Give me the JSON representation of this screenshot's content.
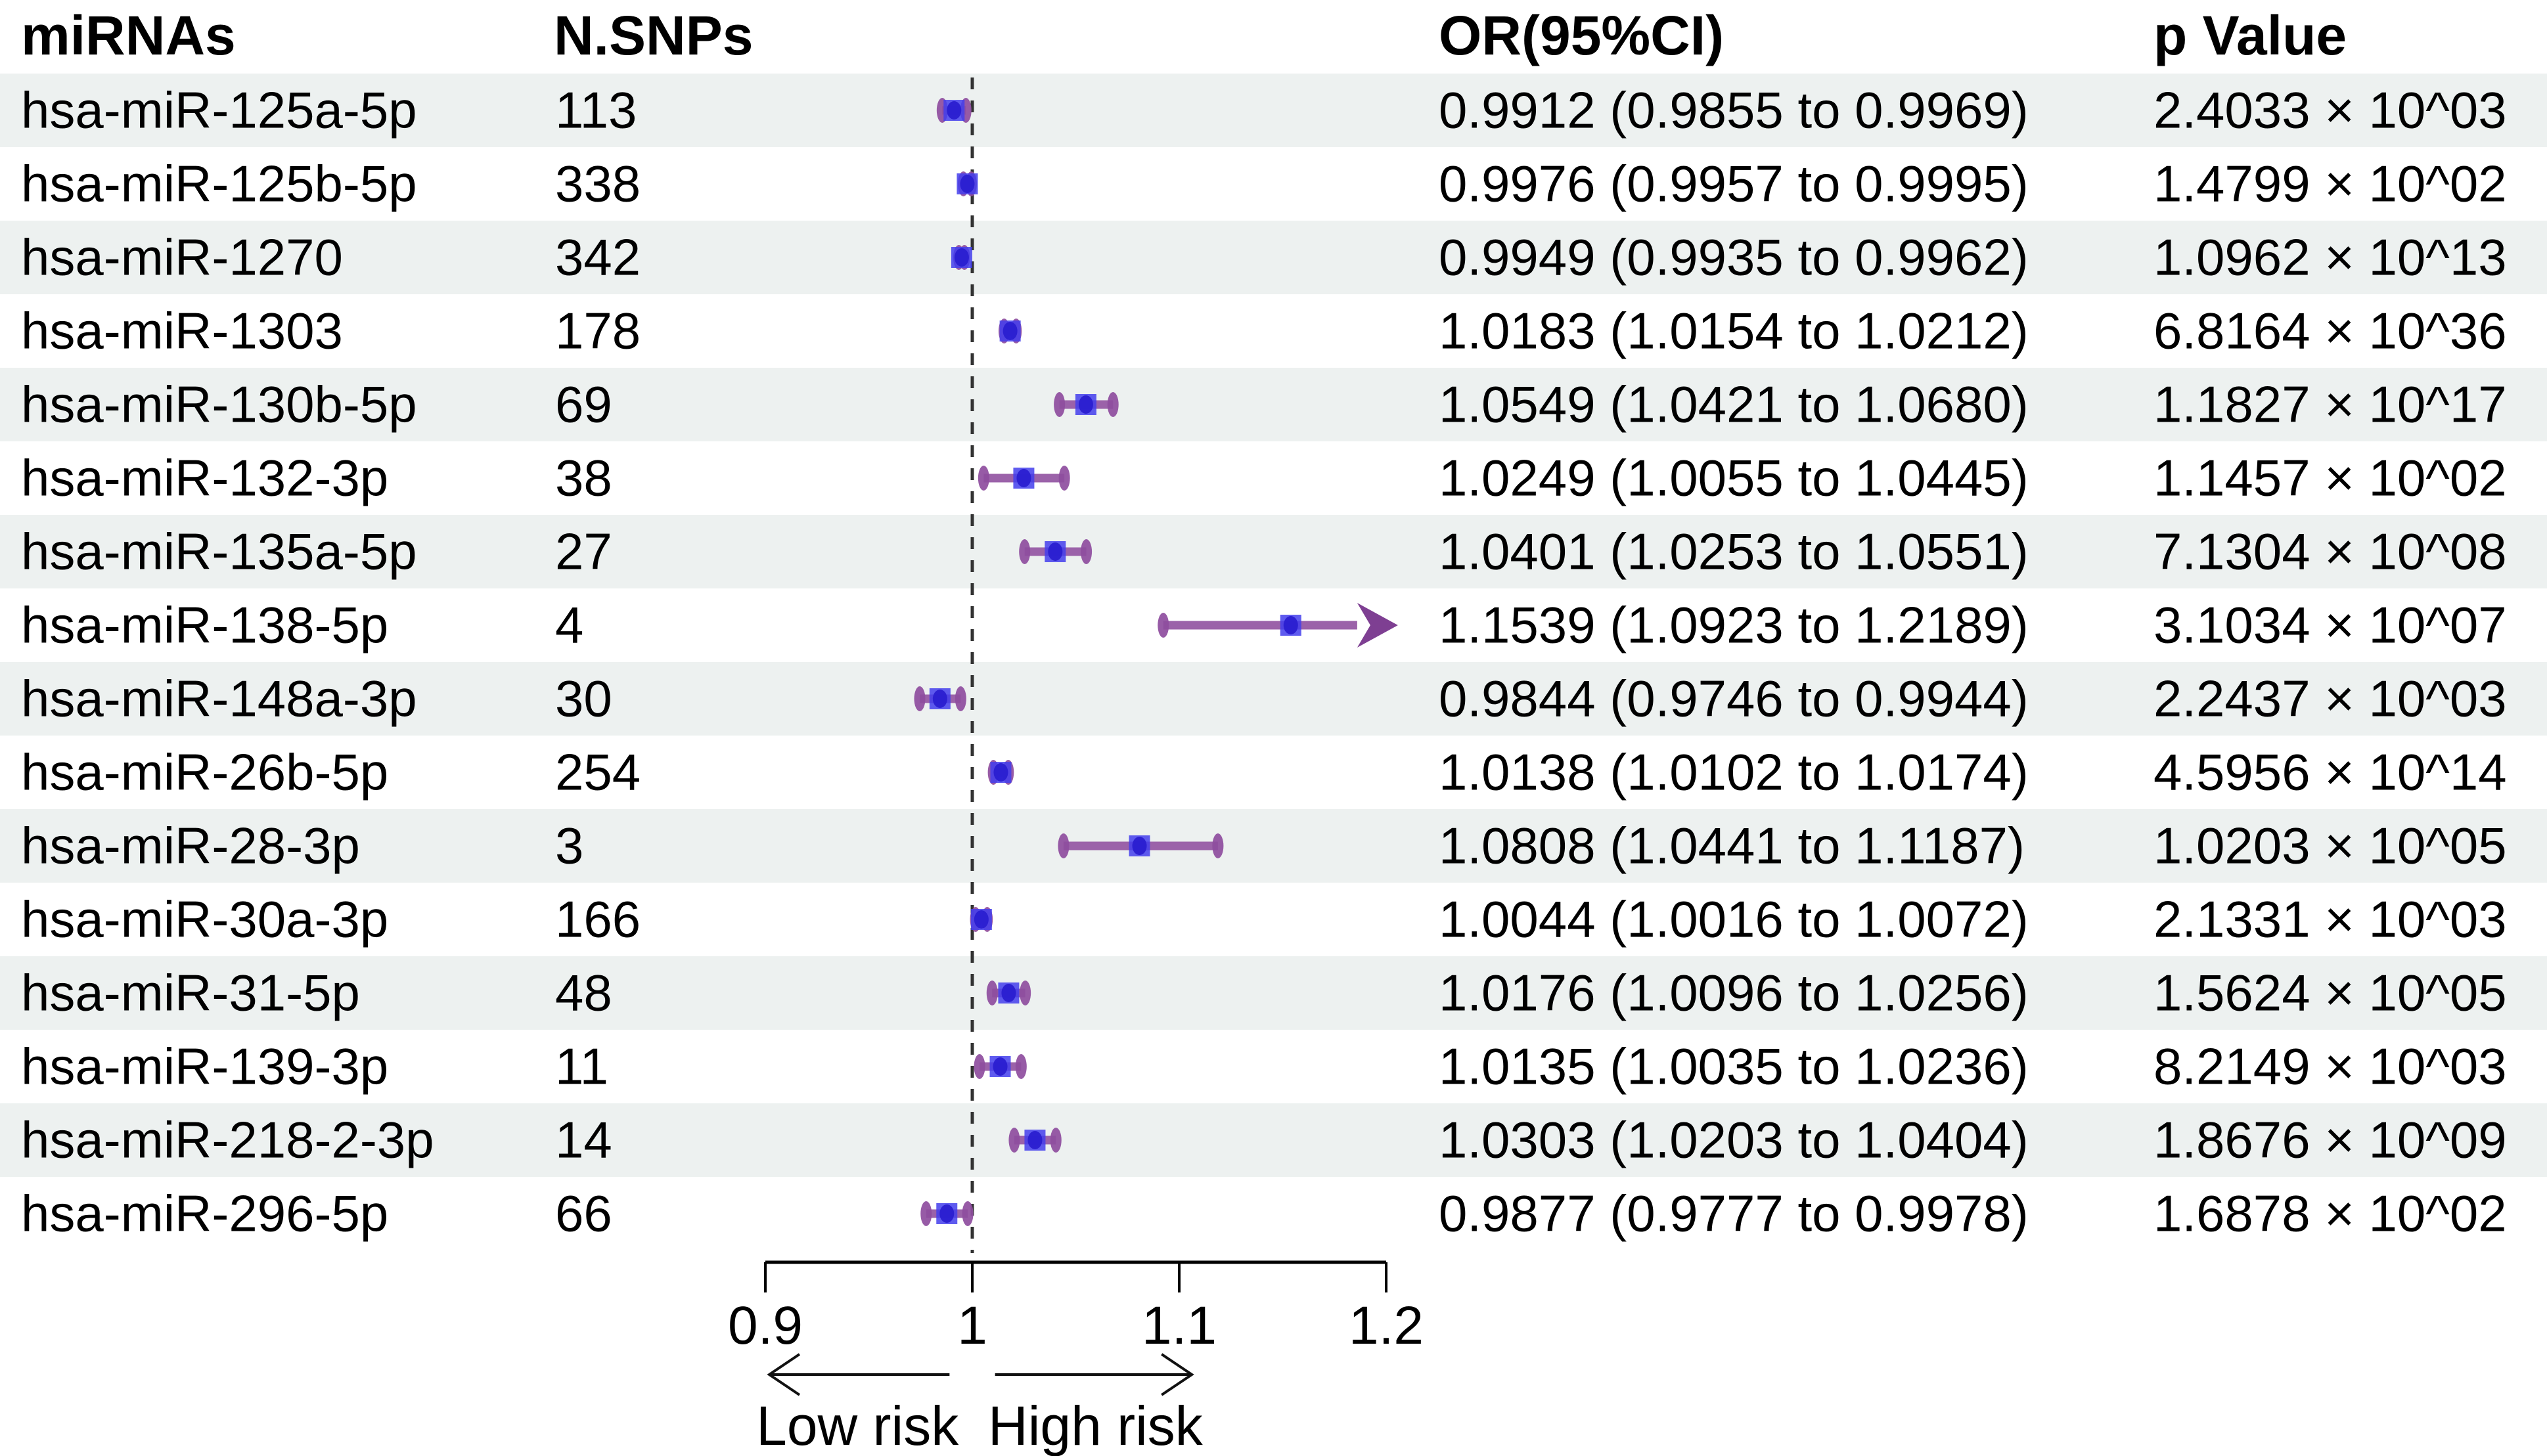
{
  "figure": {
    "columns": {
      "mirnas": "miRNAs",
      "nsnps": "N.SNPs",
      "or": "OR(95%CI)",
      "p": "p Value"
    }
  },
  "chart_data": {
    "type": "forest",
    "title": "",
    "xlabel": "",
    "xlim": [
      0.9,
      1.2
    ],
    "x_ticks": [
      0.9,
      1.0,
      1.1,
      1.2
    ],
    "x_tick_labels": [
      "0.9",
      "1",
      "1.1",
      "1.2"
    ],
    "reference_line": 1.0,
    "grid": "off",
    "legend": "none",
    "low_risk_label": "Low risk",
    "high_risk_label": "High risk",
    "rows": [
      {
        "name": "hsa-miR-125a-5p",
        "snps": "113",
        "or": 0.9912,
        "low": 0.9855,
        "high": 0.9969,
        "or_text": "0.9912 (0.9855 to 0.9969)",
        "p_text": "2.4033 × 10^03"
      },
      {
        "name": "hsa-miR-125b-5p",
        "snps": "338",
        "or": 0.9976,
        "low": 0.9957,
        "high": 0.9995,
        "or_text": "0.9976 (0.9957 to 0.9995)",
        "p_text": "1.4799 × 10^02"
      },
      {
        "name": "hsa-miR-1270",
        "snps": "342",
        "or": 0.9949,
        "low": 0.9935,
        "high": 0.9962,
        "or_text": "0.9949 (0.9935 to 0.9962)",
        "p_text": "1.0962 × 10^13"
      },
      {
        "name": "hsa-miR-1303",
        "snps": "178",
        "or": 1.0183,
        "low": 1.0154,
        "high": 1.0212,
        "or_text": "1.0183 (1.0154 to 1.0212)",
        "p_text": "6.8164 × 10^36"
      },
      {
        "name": "hsa-miR-130b-5p",
        "snps": "69",
        "or": 1.0549,
        "low": 1.0421,
        "high": 1.068,
        "or_text": "1.0549 (1.0421 to 1.0680)",
        "p_text": "1.1827 × 10^17"
      },
      {
        "name": "hsa-miR-132-3p",
        "snps": "38",
        "or": 1.0249,
        "low": 1.0055,
        "high": 1.0445,
        "or_text": "1.0249 (1.0055 to 1.0445)",
        "p_text": "1.1457 × 10^02"
      },
      {
        "name": "hsa-miR-135a-5p",
        "snps": "27",
        "or": 1.0401,
        "low": 1.0253,
        "high": 1.0551,
        "or_text": "1.0401 (1.0253 to 1.0551)",
        "p_text": "7.1304 × 10^08"
      },
      {
        "name": "hsa-miR-138-5p",
        "snps": "4",
        "or": 1.1539,
        "low": 1.0923,
        "high": 1.2189,
        "or_text": "1.1539 (1.0923 to 1.2189)",
        "p_text": "3.1034 × 10^07"
      },
      {
        "name": "hsa-miR-148a-3p",
        "snps": "30",
        "or": 0.9844,
        "low": 0.9746,
        "high": 0.9944,
        "or_text": "0.9844 (0.9746 to 0.9944)",
        "p_text": "2.2437 × 10^03"
      },
      {
        "name": "hsa-miR-26b-5p",
        "snps": "254",
        "or": 1.0138,
        "low": 1.0102,
        "high": 1.0174,
        "or_text": "1.0138 (1.0102 to 1.0174)",
        "p_text": "4.5956 × 10^14"
      },
      {
        "name": "hsa-miR-28-3p",
        "snps": "3",
        "or": 1.0808,
        "low": 1.0441,
        "high": 1.1187,
        "or_text": "1.0808 (1.0441 to 1.1187)",
        "p_text": "1.0203 × 10^05"
      },
      {
        "name": "hsa-miR-30a-3p",
        "snps": "166",
        "or": 1.0044,
        "low": 1.0016,
        "high": 1.0072,
        "or_text": "1.0044 (1.0016 to 1.0072)",
        "p_text": "2.1331 × 10^03"
      },
      {
        "name": "hsa-miR-31-5p",
        "snps": "48",
        "or": 1.0176,
        "low": 1.0096,
        "high": 1.0256,
        "or_text": "1.0176 (1.0096 to 1.0256)",
        "p_text": "1.5624 × 10^05"
      },
      {
        "name": "hsa-miR-139-3p",
        "snps": "11",
        "or": 1.0135,
        "low": 1.0035,
        "high": 1.0236,
        "or_text": "1.0135 (1.0035 to 1.0236)",
        "p_text": "8.2149 × 10^03"
      },
      {
        "name": "hsa-miR-218-2-3p",
        "snps": "14",
        "or": 1.0303,
        "low": 1.0203,
        "high": 1.0404,
        "or_text": "1.0303 (1.0203 to 1.0404)",
        "p_text": "1.8676 × 10^09"
      },
      {
        "name": "hsa-miR-296-5p",
        "snps": "66",
        "or": 0.9877,
        "low": 0.9777,
        "high": 0.9978,
        "or_text": "0.9877 (0.9777 to 0.9978)",
        "p_text": "1.6878 × 10^02"
      }
    ]
  },
  "colors": {
    "stripe": "#edf1f0",
    "ci_line": "#9b62a9",
    "ci_cap": "#8e4d9e",
    "arrow_head": "#7e3f92",
    "marker_fill": "#433eec",
    "marker_core": "#2a1fd0",
    "reference_dash": "#333333",
    "axis": "#000000",
    "text": "#000000"
  }
}
